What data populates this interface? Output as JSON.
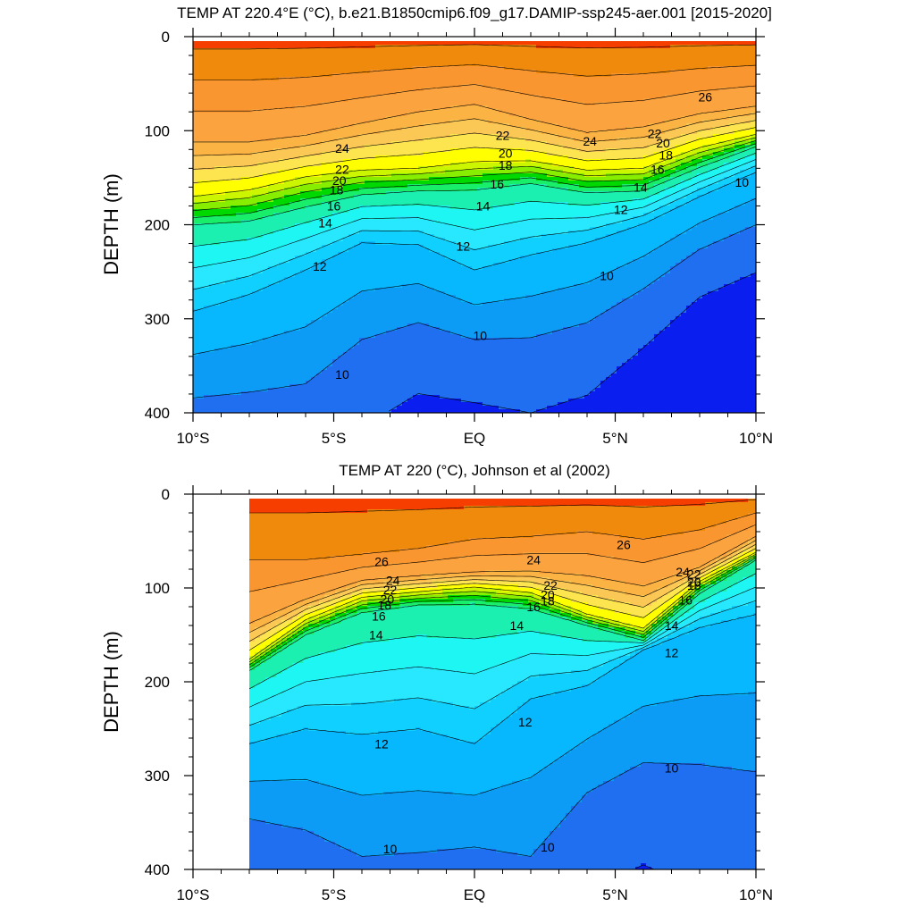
{
  "chart_data": [
    {
      "type": "contour",
      "title": "TEMP AT 220.4°E (°C), b.e21.B1850cmip6.f09_g17.DAMIP-ssp245-aer.001 [2015-2020]",
      "ylabel": "DEPTH (m)",
      "xlabel": "",
      "xlim": [
        -10,
        10
      ],
      "ylim": [
        0,
        400
      ],
      "y_inverted": true,
      "x_ticks": [
        {
          "value": -10,
          "label": "10°S"
        },
        {
          "value": -5,
          "label": "5°S"
        },
        {
          "value": 0,
          "label": "EQ"
        },
        {
          "value": 5,
          "label": "5°N"
        },
        {
          "value": 10,
          "label": "10°N"
        }
      ],
      "y_ticks": [
        {
          "value": 0,
          "label": "0"
        },
        {
          "value": 100,
          "label": "100"
        },
        {
          "value": 200,
          "label": "200"
        },
        {
          "value": 300,
          "label": "300"
        },
        {
          "value": 400,
          "label": "400"
        }
      ],
      "data_xlim": [
        -10,
        10
      ],
      "contour_interval": 1,
      "temperature_range": [
        9,
        27
      ],
      "isotherm_depth_profiles": {
        "x": [
          -10,
          -8,
          -6,
          -4,
          -2,
          0,
          2,
          4,
          6,
          8,
          10
        ],
        "T24": [
          112,
          112,
          105,
          92,
          80,
          72,
          88,
          102,
          96,
          82,
          74
        ],
        "T20": [
          170,
          163,
          149,
          142,
          140,
          133,
          132,
          142,
          140,
          118,
          104
        ],
        "T16": [
          200,
          196,
          181,
          168,
          164,
          163,
          156,
          166,
          164,
          139,
          117
        ],
        "T12": [
          292,
          274,
          248,
          219,
          221,
          248,
          232,
          219,
          199,
          170,
          144
        ],
        "T10": [
          384,
          378,
          369,
          322,
          304,
          322,
          320,
          304,
          268,
          226,
          200
        ]
      },
      "contour_labels": [
        {
          "text": "26",
          "x": 8.2,
          "y": 64
        },
        {
          "text": "24",
          "x": -4.7,
          "y": 119
        },
        {
          "text": "24",
          "x": 4.1,
          "y": 111
        },
        {
          "text": "22",
          "x": -4.7,
          "y": 141
        },
        {
          "text": "22",
          "x": 1.0,
          "y": 105
        },
        {
          "text": "22",
          "x": 6.4,
          "y": 103
        },
        {
          "text": "20",
          "x": -4.8,
          "y": 153
        },
        {
          "text": "20",
          "x": 1.1,
          "y": 124
        },
        {
          "text": "20",
          "x": 6.7,
          "y": 113
        },
        {
          "text": "18",
          "x": -4.9,
          "y": 163
        },
        {
          "text": "18",
          "x": 1.1,
          "y": 137
        },
        {
          "text": "18",
          "x": 6.8,
          "y": 126
        },
        {
          "text": "16",
          "x": -5.0,
          "y": 180
        },
        {
          "text": "16",
          "x": 0.8,
          "y": 157
        },
        {
          "text": "16",
          "x": 6.5,
          "y": 141
        },
        {
          "text": "14",
          "x": -5.3,
          "y": 198
        },
        {
          "text": "14",
          "x": 0.3,
          "y": 180
        },
        {
          "text": "14",
          "x": 5.9,
          "y": 160
        },
        {
          "text": "12",
          "x": -5.5,
          "y": 244
        },
        {
          "text": "12",
          "x": -0.4,
          "y": 223
        },
        {
          "text": "12",
          "x": 5.2,
          "y": 184
        },
        {
          "text": "10",
          "x": -4.7,
          "y": 359
        },
        {
          "text": "10",
          "x": 0.2,
          "y": 318
        },
        {
          "text": "10",
          "x": 4.7,
          "y": 254
        },
        {
          "text": "10",
          "x": 9.5,
          "y": 155
        }
      ]
    },
    {
      "type": "contour",
      "title": "TEMP AT 220 (°C), Johnson et al (2002)",
      "ylabel": "DEPTH (m)",
      "xlabel": "",
      "xlim": [
        -10,
        10
      ],
      "ylim": [
        0,
        400
      ],
      "y_inverted": true,
      "x_ticks": [
        {
          "value": -10,
          "label": "10°S"
        },
        {
          "value": -5,
          "label": "5°S"
        },
        {
          "value": 0,
          "label": "EQ"
        },
        {
          "value": 5,
          "label": "5°N"
        },
        {
          "value": 10,
          "label": "10°N"
        }
      ],
      "y_ticks": [
        {
          "value": 0,
          "label": "0"
        },
        {
          "value": 100,
          "label": "100"
        },
        {
          "value": 200,
          "label": "200"
        },
        {
          "value": 300,
          "label": "300"
        },
        {
          "value": 400,
          "label": "400"
        }
      ],
      "data_xlim": [
        -8,
        10
      ],
      "contour_interval": 1,
      "temperature_range": [
        9,
        27
      ],
      "isotherm_depth_profiles": {
        "x": [
          -8,
          -6,
          -4,
          -2,
          0,
          2,
          4,
          6,
          8,
          10
        ],
        "T26": [
          70,
          70,
          64,
          58,
          48,
          45,
          40,
          48,
          38,
          20
        ],
        "T24": [
          138,
          112,
          92,
          87,
          83,
          82,
          87,
          98,
          78,
          45
        ],
        "T20": [
          176,
          134,
          110,
          104,
          99,
          105,
          128,
          143,
          93,
          62
        ],
        "T16": [
          188,
          150,
          126,
          118,
          117,
          122,
          140,
          156,
          106,
          70
        ],
        "T12": [
          266,
          250,
          256,
          250,
          266,
          218,
          204,
          166,
          142,
          128
        ],
        "T10": [
          346,
          358,
          386,
          382,
          376,
          386,
          318,
          286,
          288,
          296
        ]
      },
      "contour_labels": [
        {
          "text": "26",
          "x": -3.3,
          "y": 72
        },
        {
          "text": "26",
          "x": 5.3,
          "y": 54
        },
        {
          "text": "24",
          "x": -2.9,
          "y": 92
        },
        {
          "text": "24",
          "x": 2.1,
          "y": 70
        },
        {
          "text": "24",
          "x": 7.4,
          "y": 83
        },
        {
          "text": "22",
          "x": -3.0,
          "y": 102
        },
        {
          "text": "22",
          "x": 2.7,
          "y": 97
        },
        {
          "text": "22",
          "x": 7.8,
          "y": 85
        },
        {
          "text": "20",
          "x": -3.1,
          "y": 112
        },
        {
          "text": "20",
          "x": 2.6,
          "y": 107
        },
        {
          "text": "20",
          "x": 7.8,
          "y": 94
        },
        {
          "text": "18",
          "x": -3.2,
          "y": 118
        },
        {
          "text": "18",
          "x": 2.6,
          "y": 114
        },
        {
          "text": "18",
          "x": 7.8,
          "y": 97
        },
        {
          "text": "16",
          "x": -3.4,
          "y": 130
        },
        {
          "text": "16",
          "x": 2.1,
          "y": 120
        },
        {
          "text": "16",
          "x": 7.5,
          "y": 113
        },
        {
          "text": "14",
          "x": -3.5,
          "y": 150
        },
        {
          "text": "14",
          "x": 1.5,
          "y": 140
        },
        {
          "text": "14",
          "x": 7.0,
          "y": 140
        },
        {
          "text": "12",
          "x": -3.3,
          "y": 266
        },
        {
          "text": "12",
          "x": 1.8,
          "y": 243
        },
        {
          "text": "12",
          "x": 7.0,
          "y": 169
        },
        {
          "text": "10",
          "x": -3.0,
          "y": 378
        },
        {
          "text": "10",
          "x": 2.6,
          "y": 376
        },
        {
          "text": "10",
          "x": 7.0,
          "y": 292
        }
      ]
    }
  ],
  "colors": {
    "T27": "#f53e00",
    "T26": "#f08a0c",
    "T25": "#f99630",
    "T24": "#fba33e",
    "T23": "#fbb444",
    "T22": "#fcc855",
    "T21": "#fde550",
    "T20": "#ffff00",
    "T19": "#ccf500",
    "T18": "#88ee00",
    "T17": "#00d900",
    "T16": "#18ee6a",
    "T15": "#1bf0b0",
    "T14": "#1df6f2",
    "T13": "#28e8ff",
    "T12": "#10d0ff",
    "T11": "#07b8ff",
    "T10": "#0d9cf5",
    "T9": "#1f6ff0",
    "T8": "#0a1ef0"
  }
}
